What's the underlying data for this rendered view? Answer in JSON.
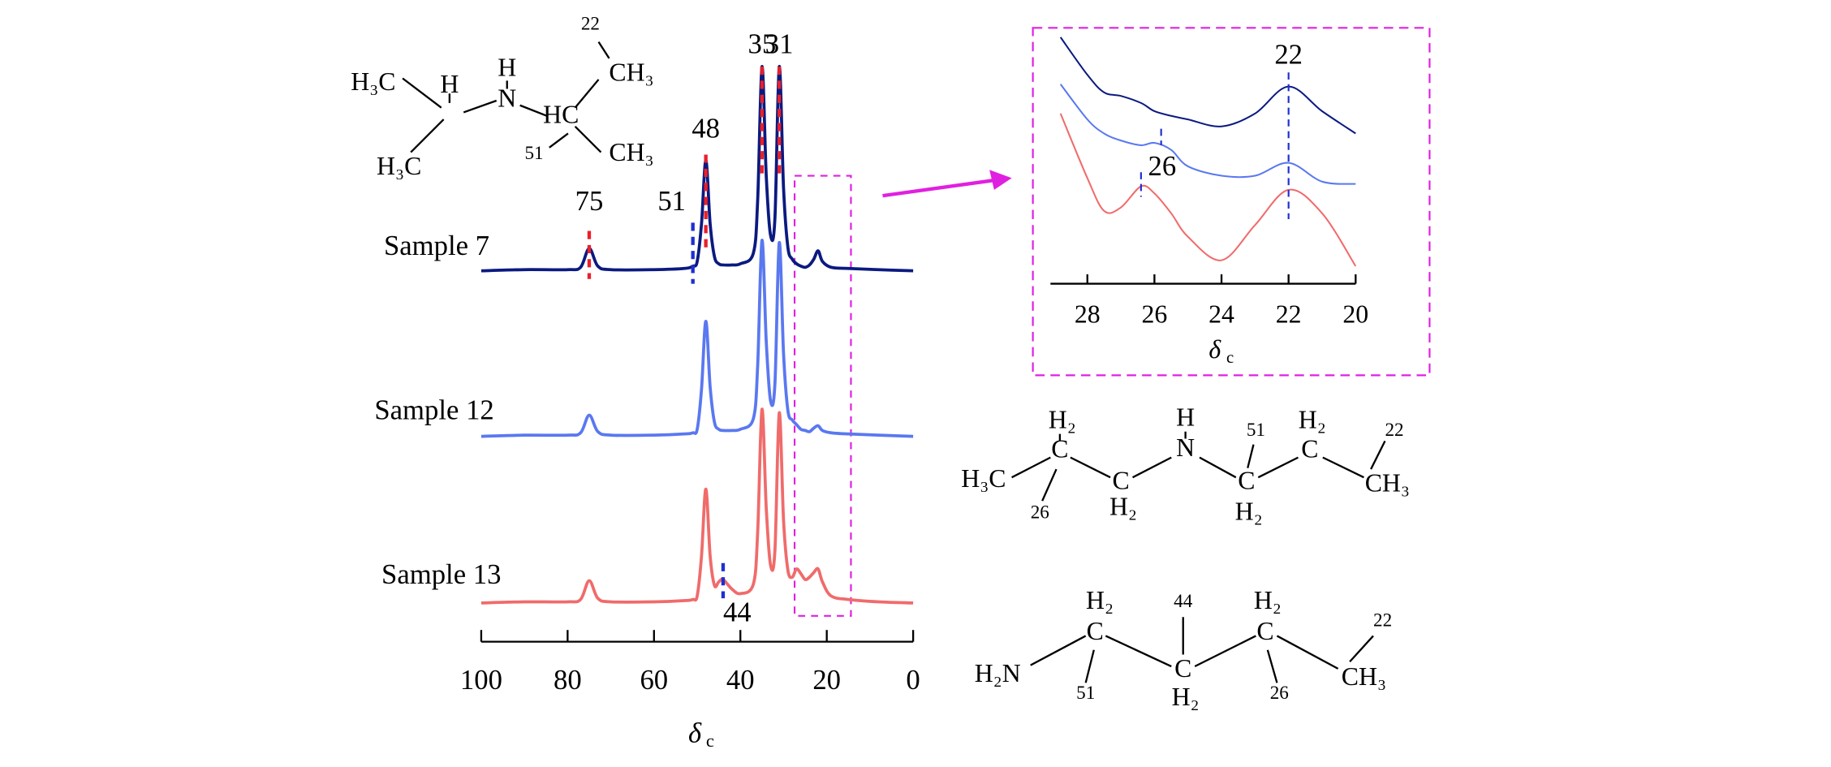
{
  "chart_data": [
    {
      "type": "line",
      "x": [
        100,
        90,
        80,
        77,
        75,
        73,
        70,
        60,
        53,
        51,
        50,
        49,
        48,
        47,
        46,
        45,
        44,
        42,
        40,
        37,
        36,
        35,
        34,
        33,
        32,
        31,
        30,
        29,
        28,
        27,
        26,
        25,
        24,
        23,
        22,
        21,
        19,
        15,
        8,
        0
      ],
      "xlim": [
        100,
        0
      ],
      "xticks": [
        100,
        80,
        60,
        40,
        20,
        0
      ],
      "xlabel": [
        "δ",
        "c"
      ],
      "series": [
        {
          "name": "Sample 7",
          "color": "#0b1a80",
          "values": [
            0,
            1,
            1,
            3,
            19,
            4,
            1,
            1,
            2,
            4,
            8,
            40,
            94,
            40,
            12,
            6,
            5,
            5,
            6,
            15,
            60,
            174,
            80,
            30,
            45,
            174,
            70,
            20,
            10,
            6,
            4,
            3,
            5,
            10,
            17,
            8,
            3,
            2,
            1,
            0
          ]
        },
        {
          "name": "Sample 12",
          "color": "#5a78f0",
          "values": [
            0,
            1,
            1,
            3,
            18,
            4,
            1,
            1,
            2,
            3,
            6,
            40,
            98,
            42,
            12,
            6,
            5,
            5,
            6,
            15,
            60,
            167,
            80,
            30,
            45,
            165,
            70,
            22,
            14,
            10,
            6,
            5,
            4,
            7,
            9,
            5,
            3,
            2,
            1,
            0
          ]
        },
        {
          "name": "Sample 13",
          "color": "#f06b6b",
          "values": [
            0,
            1,
            1,
            3,
            19,
            4,
            1,
            1,
            2,
            3,
            6,
            40,
            97,
            40,
            15,
            18,
            20,
            12,
            8,
            16,
            60,
            165,
            80,
            32,
            45,
            162,
            70,
            28,
            22,
            29,
            25,
            20,
            22,
            26,
            29,
            18,
            6,
            3,
            1,
            0
          ]
        }
      ],
      "peaks": [
        {
          "x": 75,
          "color": "#e8202a"
        },
        {
          "x": 51,
          "color": "#1f2fd0"
        },
        {
          "x": 48,
          "color": "#e8202a"
        },
        {
          "x": 35,
          "color": "#e8202a"
        },
        {
          "x": 31,
          "color": "#e8202a"
        },
        {
          "x": 44,
          "color": "#1f2fd0"
        }
      ]
    },
    {
      "type": "line",
      "x": [
        28.8,
        28,
        27.5,
        27,
        26.4,
        26,
        25.5,
        25,
        24,
        23,
        22,
        21,
        20
      ],
      "xlim": [
        29.1,
        20
      ],
      "xticks": [
        28,
        26,
        24,
        22,
        20
      ],
      "xlabel": [
        "δ",
        "c"
      ],
      "series": [
        {
          "color": "#0b1a80",
          "values": [
            210,
            178,
            163,
            160,
            154,
            147,
            143,
            140,
            134,
            145,
            168,
            147,
            128
          ]
        },
        {
          "color": "#5a78f0",
          "values": [
            170,
            140,
            128,
            122,
            118,
            120,
            114,
            100,
            92,
            92,
            103,
            87,
            85
          ]
        },
        {
          "color": "#f06b6b",
          "values": [
            145,
            90,
            62,
            65,
            83,
            77,
            60,
            40,
            20,
            50,
            80,
            60,
            15
          ]
        }
      ],
      "peaks": [
        {
          "x": 22,
          "color": "#1f2fd0"
        },
        {
          "x": 26.4,
          "label": "26",
          "color": "#1f2fd0"
        },
        {
          "x": 25.8,
          "color": "#1f2fd0"
        }
      ]
    }
  ],
  "molecules": [
    [
      "22",
      "CH₃",
      "H₃C",
      "H",
      "H",
      "N",
      "HC",
      "H₃C",
      "51",
      "CH₃"
    ],
    [
      "H₂",
      "H",
      "H₂",
      "22",
      "51",
      "C",
      "N",
      "C",
      "H₃C",
      "C",
      "C",
      "CH₃",
      "26",
      "H₂",
      "H₂"
    ],
    [
      "H₂",
      "44",
      "H₂",
      "22",
      "C",
      "C",
      "H₂N",
      "C",
      "CH₃",
      "51",
      "H₂",
      "26"
    ]
  ]
}
